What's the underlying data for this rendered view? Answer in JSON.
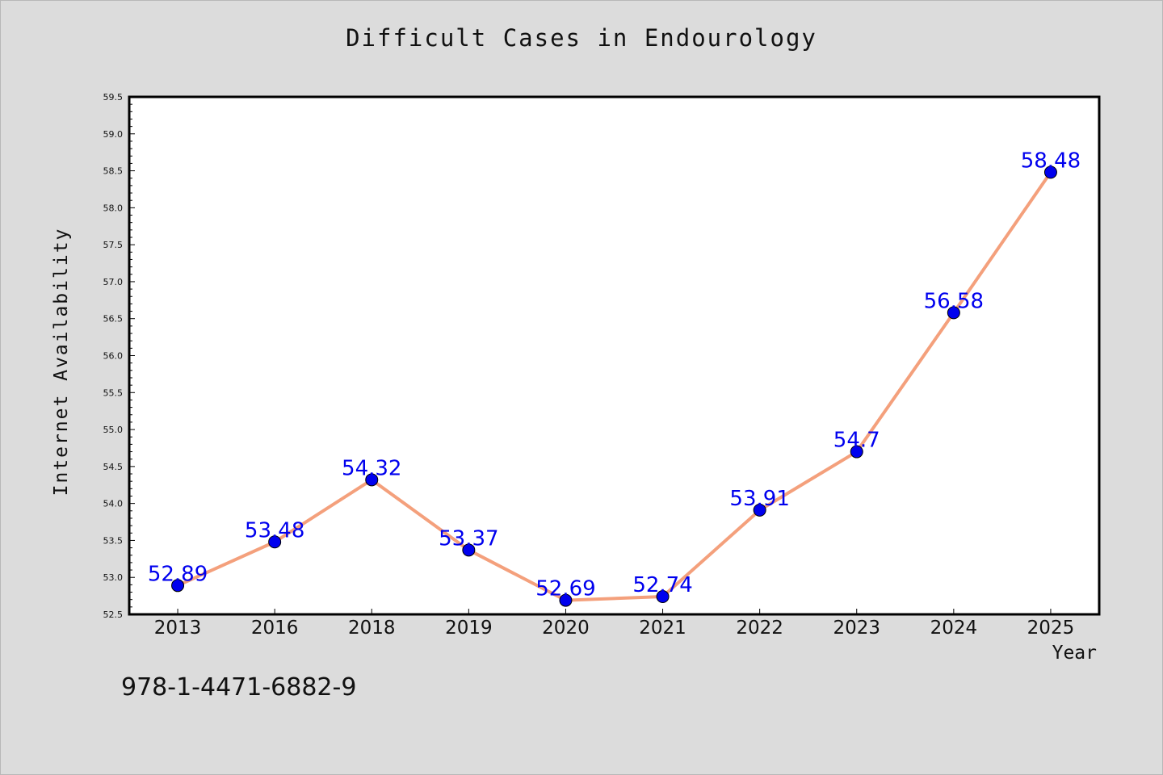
{
  "chart_data": {
    "type": "line",
    "title": "Difficult Cases in Endourology",
    "xlabel": "Year",
    "ylabel": "Internet Availability",
    "categories": [
      "2013",
      "2016",
      "2018",
      "2019",
      "2020",
      "2021",
      "2022",
      "2023",
      "2024",
      "2025"
    ],
    "series": [
      {
        "values": [
          52.89,
          53.48,
          54.32,
          53.37,
          52.69,
          52.74,
          53.91,
          54.7,
          56.58,
          58.48
        ],
        "labels": [
          "52.89",
          "53.48",
          "54.32",
          "53.37",
          "52.69",
          "52.74",
          "53.91",
          "54.7",
          "56.58",
          "58.48"
        ]
      }
    ],
    "ylim": [
      52.5,
      59.5
    ],
    "yticks": [
      "52.5",
      "53.0",
      "53.5",
      "54.0",
      "54.5",
      "55.0",
      "55.5",
      "56.0",
      "56.5",
      "57.0",
      "57.5",
      "58.0",
      "58.5",
      "59.0",
      "59.5"
    ],
    "grid": false,
    "colors": {
      "line": "#f4a07c",
      "marker": "#0000ee",
      "label": "#0000ee",
      "plot_bg": "#ffffff",
      "page_bg": "#dcdcdc"
    }
  },
  "footnote": "978-1-4471-6882-9"
}
